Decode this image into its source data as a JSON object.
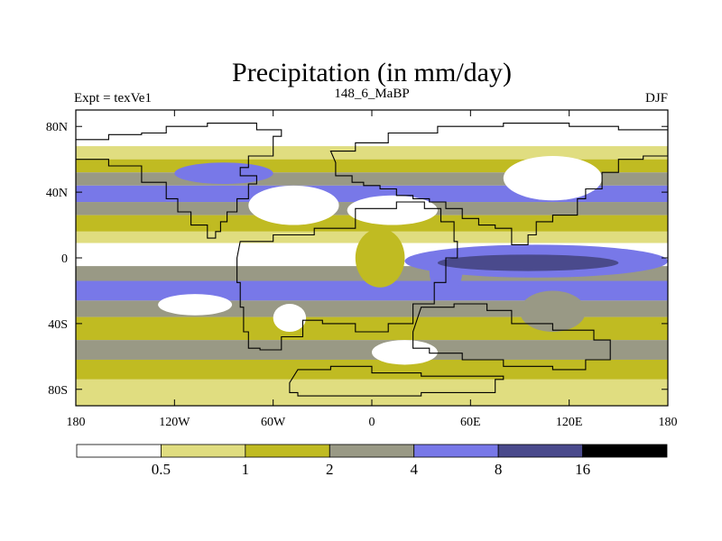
{
  "title": "Precipitation (in mm/day)",
  "experiment_label": "Expt = texVe1",
  "period_label": "148_6_MaBP",
  "season_label": "DJF",
  "axes": {
    "y_ticks": [
      "80N",
      "40N",
      "0",
      "40S",
      "80S"
    ],
    "y_values": [
      80,
      40,
      0,
      -40,
      -80
    ],
    "x_ticks": [
      "180",
      "120W",
      "60W",
      "0",
      "60E",
      "120E",
      "180"
    ],
    "x_values": [
      -180,
      -120,
      -60,
      0,
      60,
      120,
      180
    ],
    "lat_range": [
      -90,
      90
    ],
    "lon_range": [
      -180,
      180
    ]
  },
  "colorbar": {
    "labels": [
      "0.5",
      "1",
      "2",
      "4",
      "8",
      "16"
    ],
    "colors": [
      "#ffffff",
      "#e0dd80",
      "#c0bb22",
      "#999985",
      "#7878e8",
      "#4a4a8c",
      "#000000"
    ]
  },
  "chart_data": {
    "type": "heatmap",
    "title": "Precipitation (in mm/day)",
    "variable": "Precipitation",
    "units": "mm/day",
    "levels": [
      0.5,
      1,
      2,
      4,
      8,
      16
    ],
    "xlim": [
      -180,
      180
    ],
    "ylim": [
      -90,
      90
    ],
    "zonal_bands": [
      {
        "lat": [
          68,
          90
        ],
        "value": 0.3
      },
      {
        "lat": [
          60,
          68
        ],
        "value": 0.8
      },
      {
        "lat": [
          52,
          60
        ],
        "value": 1.5
      },
      {
        "lat": [
          44,
          52
        ],
        "value": 3
      },
      {
        "lat": [
          34,
          44
        ],
        "value": 5
      },
      {
        "lat": [
          26,
          34
        ],
        "value": 3
      },
      {
        "lat": [
          16,
          26
        ],
        "value": 1.5
      },
      {
        "lat": [
          9,
          16
        ],
        "value": 0.7
      },
      {
        "lat": [
          -5,
          9
        ],
        "value": 0.3
      },
      {
        "lat": [
          -14,
          -5
        ],
        "value": 3
      },
      {
        "lat": [
          -26,
          -14
        ],
        "value": 5
      },
      {
        "lat": [
          -36,
          -26
        ],
        "value": 3
      },
      {
        "lat": [
          -50,
          -36
        ],
        "value": 1.5
      },
      {
        "lat": [
          -62,
          -50
        ],
        "value": 3
      },
      {
        "lat": [
          -74,
          -62
        ],
        "value": 1.5
      },
      {
        "lat": [
          -90,
          -74
        ],
        "value": 0.7
      }
    ],
    "anomalies": [
      {
        "lon": [
          -75,
          -20
        ],
        "lat": [
          20,
          44
        ],
        "value": 0.3
      },
      {
        "lon": [
          -10,
          20
        ],
        "lat": [
          -18,
          18
        ],
        "value": 1.5
      },
      {
        "lon": [
          35,
          55
        ],
        "lat": [
          -22,
          5
        ],
        "value": 5
      },
      {
        "lon": [
          -15,
          40
        ],
        "lat": [
          20,
          38
        ],
        "value": 0.3
      },
      {
        "lon": [
          80,
          140
        ],
        "lat": [
          35,
          62
        ],
        "value": 0.3
      },
      {
        "lon": [
          20,
          180
        ],
        "lat": [
          -12,
          8
        ],
        "value": 5
      },
      {
        "lon": [
          40,
          150
        ],
        "lat": [
          -8,
          2
        ],
        "value": 10
      },
      {
        "lon": [
          -130,
          -85
        ],
        "lat": [
          -35,
          -22
        ],
        "value": 0.3
      },
      {
        "lon": [
          -60,
          -40
        ],
        "lat": [
          -45,
          -28
        ],
        "value": 0.3
      },
      {
        "lon": [
          -120,
          -60
        ],
        "lat": [
          45,
          58
        ],
        "value": 4.5
      },
      {
        "lon": [
          90,
          130
        ],
        "lat": [
          -45,
          -20
        ],
        "value": 3
      },
      {
        "lon": [
          0,
          40
        ],
        "lat": [
          -65,
          -50
        ],
        "value": 0.3
      }
    ]
  }
}
